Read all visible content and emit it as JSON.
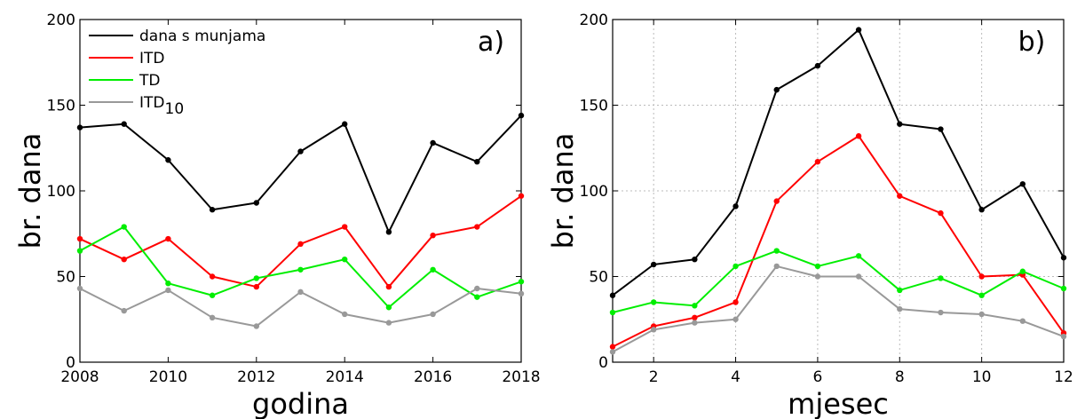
{
  "chart_data": [
    {
      "type": "line",
      "panel_label": "a)",
      "xlabel": "godina",
      "ylabel": "br. dana",
      "xlim": [
        2008,
        2018
      ],
      "ylim": [
        0,
        200
      ],
      "xticks": [
        2008,
        2010,
        2012,
        2014,
        2016,
        2018
      ],
      "yticks": [
        0,
        50,
        100,
        150,
        200
      ],
      "grid": false,
      "legend_position": "top-left",
      "x": [
        2008,
        2009,
        2010,
        2011,
        2012,
        2013,
        2014,
        2015,
        2016,
        2017,
        2018
      ],
      "series": [
        {
          "name": "dana s munjama",
          "color": "#000000",
          "values": [
            137,
            139,
            118,
            89,
            93,
            123,
            139,
            76,
            128,
            117,
            144
          ]
        },
        {
          "name": "ITD",
          "color": "#ff0000",
          "values": [
            72,
            60,
            72,
            50,
            44,
            69,
            79,
            44,
            74,
            79,
            97
          ]
        },
        {
          "name": "TD",
          "color": "#00ee00",
          "values": [
            65,
            79,
            46,
            39,
            49,
            54,
            60,
            32,
            54,
            38,
            47
          ]
        },
        {
          "name": "ITD",
          "name_subscript": "10",
          "color": "#999999",
          "values": [
            43,
            30,
            42,
            26,
            21,
            41,
            28,
            23,
            28,
            43,
            40
          ]
        }
      ]
    },
    {
      "type": "line",
      "panel_label": "b)",
      "xlabel": "mjesec",
      "ylabel": "br. dana",
      "xlim": [
        1,
        12
      ],
      "ylim": [
        0,
        200
      ],
      "xticks": [
        2,
        4,
        6,
        8,
        10,
        12
      ],
      "yticks": [
        0,
        50,
        100,
        150,
        200
      ],
      "grid": true,
      "x": [
        1,
        2,
        3,
        4,
        5,
        6,
        7,
        8,
        9,
        10,
        11,
        12
      ],
      "series": [
        {
          "color": "#000000",
          "values": [
            39,
            57,
            60,
            91,
            159,
            173,
            194,
            139,
            136,
            89,
            104,
            61
          ]
        },
        {
          "color": "#ff0000",
          "values": [
            9,
            21,
            26,
            35,
            94,
            117,
            132,
            97,
            87,
            50,
            51,
            17
          ]
        },
        {
          "color": "#00ee00",
          "values": [
            29,
            35,
            33,
            56,
            65,
            56,
            62,
            42,
            49,
            39,
            53,
            43
          ]
        },
        {
          "color": "#999999",
          "values": [
            6,
            19,
            23,
            25,
            56,
            50,
            50,
            31,
            29,
            28,
            24,
            15
          ]
        }
      ]
    }
  ]
}
